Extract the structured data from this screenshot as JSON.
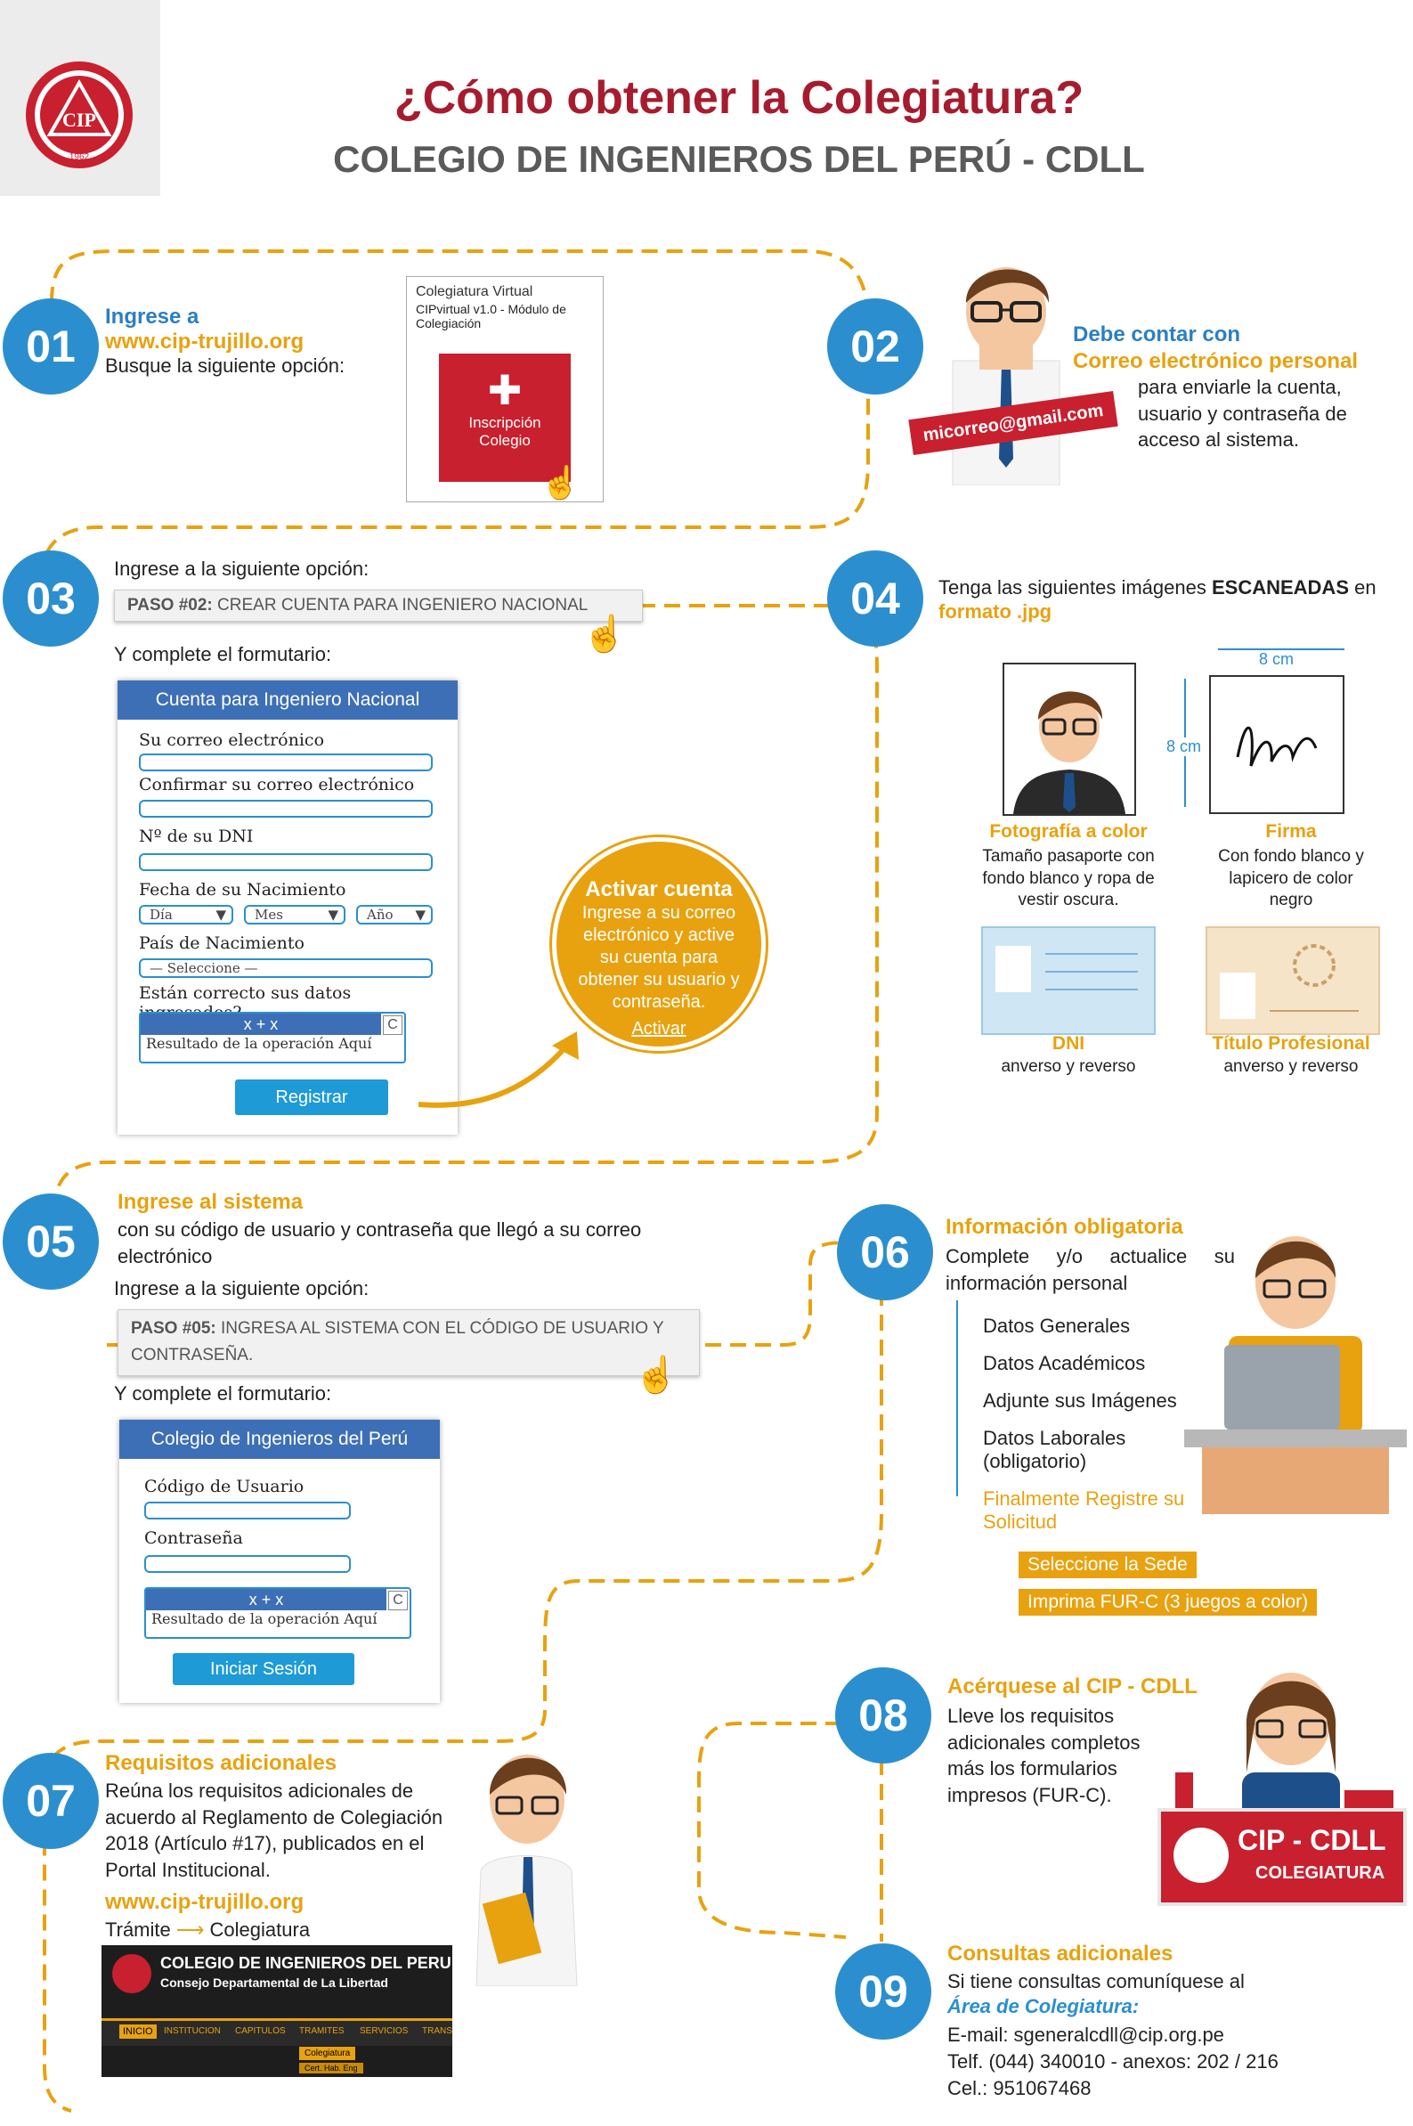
{
  "header": {
    "logo_text_top": "COLEGIO DE INGENIEROS DEL PERU",
    "logo_text_year": "1962",
    "logo_mark": "CIP",
    "title": "¿Cómo obtener la Colegiatura?",
    "subtitle": "COLEGIO DE INGENIEROS DEL PERÚ - CDLL"
  },
  "colors": {
    "title_red": "#a61c2e",
    "blue": "#2b8fcf",
    "orange": "#e8a20f",
    "form_blue": "#3d6fb6"
  },
  "step01": {
    "number": "01",
    "line1": "Ingrese a",
    "url": "www.cip-trujillo.org",
    "line2": "Busque la siguiente opción:",
    "card_title": "Colegiatura Virtual",
    "card_sub": "CIPvirtual v1.0 - Módulo de Colegiación",
    "card_button": "Inscripción Colegio"
  },
  "step02": {
    "number": "02",
    "h1": "Debe contar con",
    "h2": "Correo electrónico personal",
    "text": "para enviarle la cuenta, usuario y contraseña de acceso al sistema.",
    "email_sign": "micorreo@gmail.com"
  },
  "step03": {
    "number": "03",
    "intro": "Ingrese a la siguiente opción:",
    "paso_bold": "PASO #02:",
    "paso_text": " CREAR CUENTA PARA INGENIERO NACIONAL",
    "complete": "Y complete el formutario:",
    "form": {
      "title": "Cuenta para Ingeniero Nacional",
      "email": "Su correo electrónico",
      "confirm": "Confirmar su correo electrónico",
      "dni": "Nº de su DNI",
      "birth": "Fecha de su Nacimiento",
      "day": "Día",
      "month": "Mes",
      "year": "Año",
      "country": "País de Nacimiento",
      "select": "— Seleccione —",
      "correct": "Están correcto sus datos ingresados?",
      "captcha": "x + x",
      "captcha_result": "Resultado de la operación Aquí",
      "captcha_c": "C",
      "submit": "Registrar"
    },
    "activate": {
      "title": "Activar cuenta",
      "text": "Ingrese a su correo electrónico y active su cuenta para obtener su usuario y contraseña.",
      "link": "Activar"
    }
  },
  "step04": {
    "number": "04",
    "text_pre": "Tenga las siguientes imágenes ",
    "text_bold": "ESCANEADAS",
    "text_post": " en",
    "format": "formato .jpg",
    "dim_w": "8 cm",
    "dim_h": "8 cm",
    "photo_title": "Fotografía a color",
    "photo_text": "Tamaño pasaporte con fondo blanco y ropa de vestir oscura.",
    "sign_title": "Firma",
    "sign_text": "Con fondo blanco y lapicero de color negro",
    "dni_title": "DNI",
    "dni_text": "anverso y reverso",
    "titulo_title": "Título Profesional",
    "titulo_text": "anverso y reverso"
  },
  "step05": {
    "number": "05",
    "title": "Ingrese al sistema",
    "text": "con su código de usuario y contraseña que llegó a su correo electrónico",
    "intro": "Ingrese a la siguiente opción:",
    "paso_bold": "PASO #05:",
    "paso_text": " INGRESA AL SISTEMA CON EL CÓDIGO DE USUARIO Y CONTRASEÑA.",
    "complete": "Y complete el formutario:",
    "form": {
      "title": "Colegio de Ingenieros del Perú",
      "user": "Código de Usuario",
      "pass": "Contraseña",
      "captcha": "x + x",
      "captcha_result": "Resultado de la operación Aquí",
      "captcha_c": "C",
      "submit": "Iniciar Sesión"
    }
  },
  "step06": {
    "number": "06",
    "title": "Información obligatoria",
    "text": "Complete y/o actualice su información personal",
    "items": [
      "Datos Generales",
      "Datos Académicos",
      "Adjunte sus Imágenes",
      "Datos Laborales (obligatorio)"
    ],
    "final": "Finalmente Registre su Solicitud",
    "sub1": "Seleccione la Sede",
    "sub2": "Imprima FUR-C (3 juegos a color)"
  },
  "step07": {
    "number": "07",
    "title": "Requisitos adicionales",
    "text": "Reúna los requisitos adicionales de acuerdo al Reglamento de Colegiación 2018 (Artículo #17), publicados en el Portal Institucional.",
    "url": "www.cip-trujillo.org",
    "path_a": "Trámite",
    "path_b": "Colegiatura",
    "site_title": "COLEGIO DE INGENIEROS DEL PERU",
    "site_sub": "Consejo Departamental de La Libertad",
    "site_nav": [
      "INICIO",
      "INSTITUCION",
      "CAPITULOS",
      "TRAMITES",
      "SERVICIOS",
      "TRANSP"
    ],
    "site_menu1": "Colegiatura",
    "site_menu2": "Cert. Hab. Eng"
  },
  "step08": {
    "number": "08",
    "title": "Acérquese al CIP - CDLL",
    "text": "Lleve los requisitos adicionales completos más los formularios impresos (FUR-C).",
    "desk_title": "CIP - CDLL",
    "desk_sub": "COLEGIATURA"
  },
  "step09": {
    "number": "09",
    "title": "Consultas adicionales",
    "text": "Si tiene consultas comuníquese al",
    "area": "Área de Colegiatura:",
    "email": "E-mail: sgeneralcdll@cip.org.pe",
    "phone": "Telf. (044) 340010 - anexos: 202 / 216",
    "cel": "Cel.: 951067468"
  }
}
